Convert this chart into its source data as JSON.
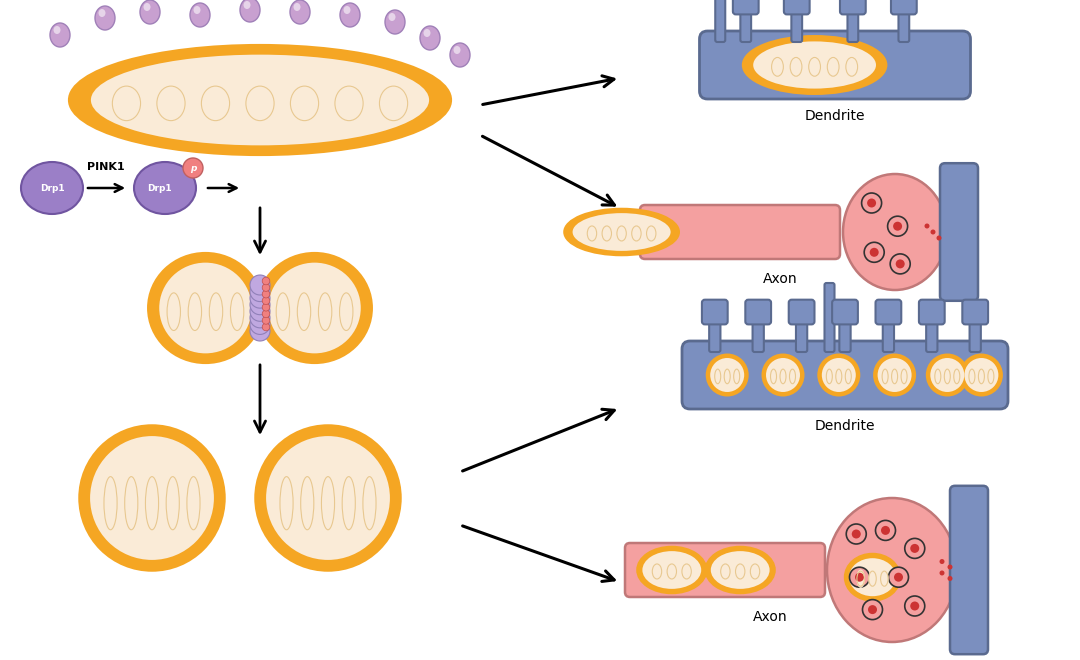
{
  "bg_color": "#ffffff",
  "mito_outer_color": "#F5A623",
  "mito_inner_color": "#FAEBD7",
  "drp1_color": "#9B7FC7",
  "drp1_p_color": "#F08080",
  "dendrite_color": "#7B8FBF",
  "dendrite_edge_color": "#5A6A8F",
  "axon_body_color": "#F4A0A0",
  "axon_edge_color": "#C07878",
  "axon_terminal_color": "#7B8FBF",
  "axon_terminal_edge": "#5A6A8F",
  "vesicle_edge_color": "#333333",
  "vesicle_fill_color": "#F4A0A0",
  "vesicle_dot_color": "#CC3333",
  "green_arrow_color": "#228B22",
  "drp1_ring_color": "#C0A8E0",
  "drp1_ring_dot_color": "#F08080",
  "small_circles_color": "#C8A0D0",
  "small_circles_edge": "#A080B8",
  "label_dendrite": "Dendrite",
  "label_axon": "Axon",
  "label_drp1": "Drp1",
  "label_pink1": "PINK1",
  "figsize": [
    10.8,
    6.6
  ],
  "dpi": 100
}
